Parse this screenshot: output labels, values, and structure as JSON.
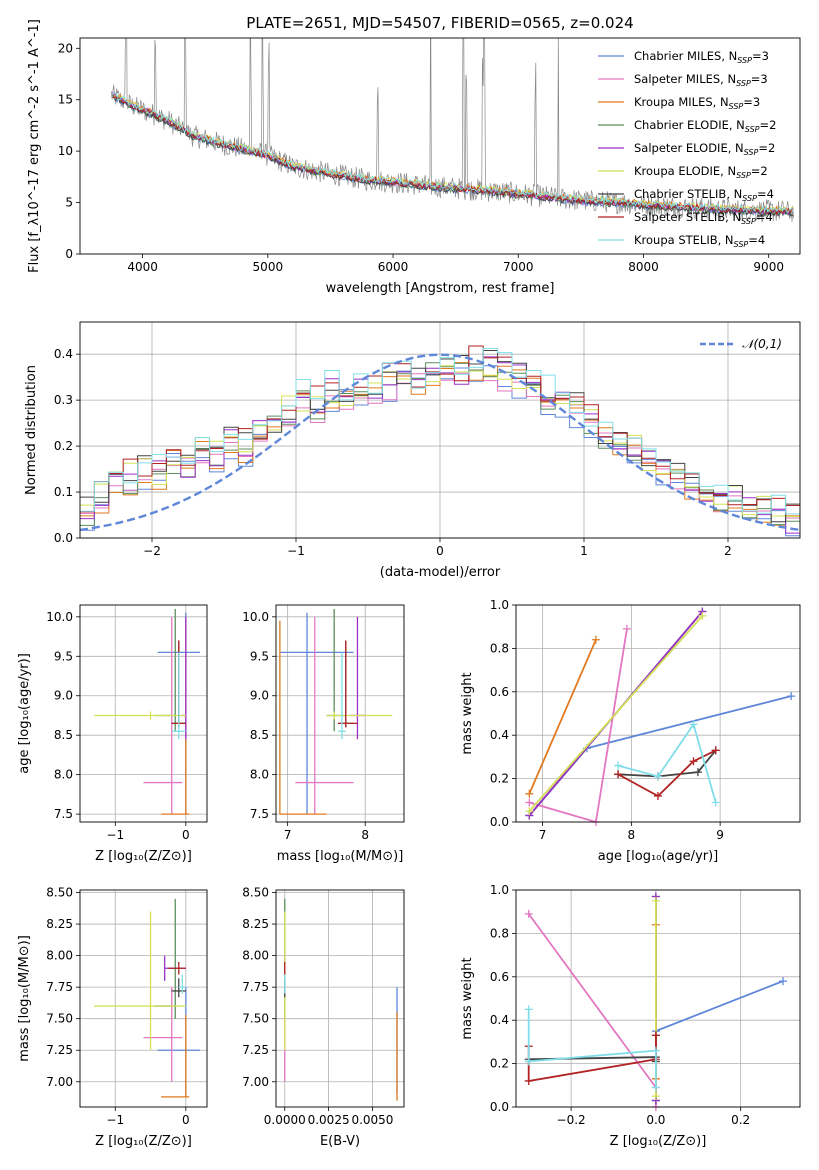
{
  "title": "PLATE=2651, MJD=54507, FIBERID=0565, z=0.024",
  "colors": {
    "Chabrier MILES": "#5f87d9",
    "Salpeter MILES": "#e377c2",
    "Kroupa MILES": "#e07a1f",
    "Chabrier ELODIE": "#5b8f5b",
    "Salpeter ELODIE": "#9b30c8",
    "Kroupa ELODIE": "#d4e157",
    "Chabrier STELIB": "#444444",
    "Salpeter STELIB": "#b22222",
    "Kroupa STELIB": "#80deea"
  },
  "chart_data": [
    {
      "id": "spectrum",
      "type": "line",
      "xlabel": "wavelength [Angstrom, rest frame]",
      "ylabel": "Flux [f_λ10^-17 erg cm^-2 s^-1 A^-1]",
      "xlim": [
        3500,
        9250
      ],
      "ylim": [
        0,
        21
      ],
      "xticks": [
        4000,
        5000,
        6000,
        7000,
        8000,
        9000
      ],
      "yticks": [
        0,
        5,
        10,
        15,
        20
      ],
      "grid": false,
      "legend_position": "upper right",
      "legend": [
        "Chabrier MILES, N_SSP=3",
        "Salpeter MILES, N_SSP=3",
        "Kroupa MILES, N_SSP=3",
        "Chabrier ELODIE, N_SSP=2",
        "Salpeter ELODIE, N_SSP=2",
        "Kroupa ELODIE, N_SSP=2",
        "Chabrier STELIB, N_SSP=4",
        "Salpeter STELIB, N_SSP=4",
        "Kroupa STELIB, N_SSP=4"
      ],
      "continuum": {
        "x": [
          3750,
          3900,
          4000,
          4200,
          4400,
          4600,
          4800,
          5000,
          5200,
          5500,
          5800,
          6000,
          6300,
          6600,
          6900,
          7200,
          7500,
          7800,
          8100,
          8400,
          8700,
          9000,
          9200
        ],
        "y": [
          15.5,
          14.5,
          14.0,
          13.0,
          11.5,
          10.8,
          10.2,
          9.6,
          8.5,
          7.8,
          7.2,
          7.0,
          6.6,
          6.3,
          6.0,
          5.6,
          5.2,
          5.0,
          4.7,
          4.5,
          4.3,
          4.2,
          4.1
        ]
      },
      "emission_lines": [
        3727,
        3869,
        4101,
        4340,
        4861,
        4959,
        5007,
        5876,
        6300,
        6563,
        6583,
        6717,
        6731,
        7136,
        7320
      ]
    },
    {
      "id": "residuals",
      "type": "step",
      "xlabel": "(data-model)/error",
      "ylabel": "Normed distribution",
      "xlim": [
        -2.5,
        2.5
      ],
      "ylim": [
        0,
        0.47
      ],
      "xticks": [
        -2,
        -1,
        0,
        1,
        2
      ],
      "yticks": [
        0.0,
        0.1,
        0.2,
        0.3,
        0.4
      ],
      "grid": true,
      "legend": [
        "N(0,1)"
      ],
      "legend_position": "upper right",
      "normal": {
        "mean": 0,
        "sigma": 1,
        "style": "dashed",
        "color": "#5f87d9"
      },
      "bins": {
        "start": -2.5,
        "width": 0.1
      },
      "histogram_profile": [
        0.06,
        0.09,
        0.12,
        0.13,
        0.15,
        0.14,
        0.17,
        0.16,
        0.19,
        0.18,
        0.21,
        0.2,
        0.23,
        0.25,
        0.28,
        0.3,
        0.29,
        0.32,
        0.31,
        0.33,
        0.32,
        0.34,
        0.35,
        0.34,
        0.36,
        0.37,
        0.36,
        0.38,
        0.37,
        0.36,
        0.35,
        0.33,
        0.31,
        0.3,
        0.28,
        0.25,
        0.22,
        0.2,
        0.19,
        0.17,
        0.15,
        0.14,
        0.12,
        0.1,
        0.09,
        0.08,
        0.07,
        0.06,
        0.05,
        0.04
      ]
    },
    {
      "id": "age_vs_Z",
      "type": "errorbar",
      "xlabel": "Z [log10(Z/Z⊙)]",
      "ylabel": "age [log10(age/yr)]",
      "xlim": [
        -1.5,
        0.3
      ],
      "ylim": [
        7.4,
        10.15
      ],
      "xticks": [
        -1,
        0
      ],
      "yticks": [
        7.5,
        8.0,
        8.5,
        9.0,
        9.5,
        10.0
      ],
      "grid": true,
      "points": [
        {
          "model": "Chabrier MILES",
          "x": 0.0,
          "xerr": [
            0.4,
            0.2
          ],
          "y": 9.55,
          "yerr": [
            2.05,
            0.5
          ]
        },
        {
          "model": "Salpeter MILES",
          "x": -0.2,
          "xerr": [
            0.4,
            0.15
          ],
          "y": 7.9,
          "yerr": [
            0.4,
            2.1
          ]
        },
        {
          "model": "Kroupa MILES",
          "x": 0.0,
          "xerr": [
            0.35,
            0.05
          ],
          "y": 7.5,
          "yerr": [
            0.0,
            2.45
          ]
        },
        {
          "model": "Chabrier ELODIE",
          "x": -0.15,
          "xerr": [
            0.3,
            0.0
          ],
          "y": 8.75,
          "yerr": [
            0.2,
            1.35
          ]
        },
        {
          "model": "Salpeter ELODIE",
          "x": 0.0,
          "xerr": [
            0.05,
            0.0
          ],
          "y": 8.75,
          "yerr": [
            0.3,
            1.25
          ]
        },
        {
          "model": "Kroupa ELODIE",
          "x": -0.5,
          "xerr": [
            0.8,
            0.5
          ],
          "y": 8.75,
          "yerr": [
            0.05,
            0.05
          ]
        },
        {
          "model": "Chabrier STELIB",
          "x": -0.1,
          "xerr": [
            0.1,
            0.1
          ],
          "y": 8.65,
          "yerr": [
            0.05,
            1.05
          ]
        },
        {
          "model": "Salpeter STELIB",
          "x": -0.1,
          "xerr": [
            0.1,
            0.1
          ],
          "y": 8.65,
          "yerr": [
            0.05,
            1.05
          ]
        },
        {
          "model": "Kroupa STELIB",
          "x": -0.1,
          "xerr": [
            0.1,
            0.1
          ],
          "y": 8.55,
          "yerr": [
            0.1,
            1.0
          ]
        }
      ]
    },
    {
      "id": "age_vs_mass",
      "type": "errorbar",
      "xlabel": "mass [log10(M/M⊙)]",
      "ylabel": "",
      "xlim": [
        6.85,
        8.5
      ],
      "ylim": [
        7.4,
        10.15
      ],
      "xticks": [
        7,
        8
      ],
      "yticks": [
        7.5,
        8.0,
        8.5,
        9.0,
        9.5,
        10.0
      ],
      "grid": true,
      "points": [
        {
          "model": "Chabrier MILES",
          "x": 7.25,
          "xerr": [
            0.35,
            0.6
          ],
          "y": 9.55,
          "yerr": [
            2.05,
            0.5
          ]
        },
        {
          "model": "Salpeter MILES",
          "x": 7.35,
          "xerr": [
            0.25,
            0.5
          ],
          "y": 7.9,
          "yerr": [
            0.4,
            2.1
          ]
        },
        {
          "model": "Kroupa MILES",
          "x": 6.9,
          "xerr": [
            0.0,
            0.6
          ],
          "y": 7.5,
          "yerr": [
            0.0,
            2.45
          ]
        },
        {
          "model": "Chabrier ELODIE",
          "x": 7.6,
          "xerr": [
            0.1,
            0.15
          ],
          "y": 8.75,
          "yerr": [
            0.2,
            1.35
          ]
        },
        {
          "model": "Salpeter ELODIE",
          "x": 7.9,
          "xerr": [
            0.1,
            0.1
          ],
          "y": 8.75,
          "yerr": [
            0.3,
            1.25
          ]
        },
        {
          "model": "Kroupa ELODIE",
          "x": 7.6,
          "xerr": [
            0.1,
            0.75
          ],
          "y": 8.75,
          "yerr": [
            0.05,
            0.05
          ]
        },
        {
          "model": "Chabrier STELIB",
          "x": 7.75,
          "xerr": [
            0.1,
            0.1
          ],
          "y": 8.65,
          "yerr": [
            0.05,
            1.05
          ]
        },
        {
          "model": "Salpeter STELIB",
          "x": 7.75,
          "xerr": [
            0.1,
            0.15
          ],
          "y": 8.65,
          "yerr": [
            0.05,
            1.05
          ]
        },
        {
          "model": "Kroupa STELIB",
          "x": 7.7,
          "xerr": [
            0.05,
            0.05
          ],
          "y": 8.55,
          "yerr": [
            0.1,
            1.0
          ]
        }
      ]
    },
    {
      "id": "weight_vs_age",
      "type": "line",
      "xlabel": "age [log10(age/yr)]",
      "ylabel": "mass weight",
      "xlim": [
        6.7,
        9.9
      ],
      "ylim": [
        0,
        1
      ],
      "xticks": [
        7,
        8,
        9
      ],
      "yticks": [
        0.0,
        0.2,
        0.4,
        0.6,
        0.8,
        1.0
      ],
      "grid": true,
      "series": [
        {
          "model": "Chabrier MILES",
          "x": [
            6.85,
            7.5,
            9.8
          ],
          "y": [
            0.03,
            0.34,
            0.58
          ]
        },
        {
          "model": "Salpeter MILES",
          "x": [
            6.85,
            7.6,
            7.95
          ],
          "y": [
            0.09,
            0.0,
            0.89
          ]
        },
        {
          "model": "Kroupa MILES",
          "x": [
            6.85,
            7.6
          ],
          "y": [
            0.13,
            0.84
          ]
        },
        {
          "model": "Chabrier ELODIE",
          "x": [
            6.85,
            8.8
          ],
          "y": [
            0.03,
            0.97
          ]
        },
        {
          "model": "Salpeter ELODIE",
          "x": [
            6.85,
            8.8
          ],
          "y": [
            0.03,
            0.97
          ]
        },
        {
          "model": "Kroupa ELODIE",
          "x": [
            6.85,
            8.8
          ],
          "y": [
            0.05,
            0.95
          ]
        },
        {
          "model": "Chabrier STELIB",
          "x": [
            7.85,
            8.3,
            8.75,
            8.95
          ],
          "y": [
            0.22,
            0.21,
            0.23,
            0.33
          ]
        },
        {
          "model": "Salpeter STELIB",
          "x": [
            7.85,
            8.3,
            8.7,
            8.95
          ],
          "y": [
            0.22,
            0.12,
            0.28,
            0.33
          ]
        },
        {
          "model": "Kroupa STELIB",
          "x": [
            7.85,
            8.3,
            8.7,
            8.95
          ],
          "y": [
            0.26,
            0.21,
            0.45,
            0.09
          ]
        }
      ]
    },
    {
      "id": "mass_vs_Z",
      "type": "errorbar",
      "xlabel": "Z [log10(Z/Z⊙)]",
      "ylabel": "mass [log10(M/M⊙)]",
      "xlim": [
        -1.5,
        0.3
      ],
      "ylim": [
        6.8,
        8.52
      ],
      "xticks": [
        -1,
        0
      ],
      "yticks": [
        7.0,
        7.25,
        7.5,
        7.75,
        8.0,
        8.25,
        8.5
      ],
      "grid": true,
      "points": [
        {
          "model": "Chabrier MILES",
          "x": 0.0,
          "xerr": [
            0.4,
            0.2
          ],
          "y": 7.25,
          "yerr": [
            0.35,
            0.5
          ]
        },
        {
          "model": "Salpeter MILES",
          "x": -0.2,
          "xerr": [
            0.4,
            0.15
          ],
          "y": 7.35,
          "yerr": [
            0.35,
            0.4
          ]
        },
        {
          "model": "Kroupa MILES",
          "x": 0.0,
          "xerr": [
            0.35,
            0.05
          ],
          "y": 6.88,
          "yerr": [
            0.0,
            0.65
          ]
        },
        {
          "model": "Chabrier ELODIE",
          "x": -0.15,
          "xerr": [
            0.3,
            0.0
          ],
          "y": 7.6,
          "yerr": [
            0.1,
            0.85
          ]
        },
        {
          "model": "Salpeter ELODIE",
          "x": -0.3,
          "xerr": [
            0.0,
            0.3
          ],
          "y": 7.9,
          "yerr": [
            0.1,
            0.1
          ]
        },
        {
          "model": "Kroupa ELODIE",
          "x": -0.5,
          "xerr": [
            0.8,
            0.5
          ],
          "y": 7.6,
          "yerr": [
            0.35,
            0.75
          ]
        },
        {
          "model": "Chabrier STELIB",
          "x": -0.1,
          "xerr": [
            0.1,
            0.1
          ],
          "y": 7.72,
          "yerr": [
            0.05,
            0.1
          ]
        },
        {
          "model": "Salpeter STELIB",
          "x": -0.1,
          "xerr": [
            0.15,
            0.1
          ],
          "y": 7.9,
          "yerr": [
            0.05,
            0.05
          ]
        },
        {
          "model": "Kroupa STELIB",
          "x": -0.05,
          "xerr": [
            0.05,
            0.05
          ],
          "y": 7.75,
          "yerr": [
            0.05,
            0.1
          ]
        }
      ]
    },
    {
      "id": "mass_vs_ebv",
      "type": "errorbar",
      "xlabel": "E(B-V)",
      "ylabel": "",
      "xlim": [
        -0.0005,
        0.0068
      ],
      "ylim": [
        6.8,
        8.52
      ],
      "xticks": [
        0.0,
        0.0025,
        0.005
      ],
      "xticklabels": [
        "0.0000",
        "0.0025",
        "0.0050"
      ],
      "yticks": [
        7.0,
        7.25,
        7.5,
        7.75,
        8.0,
        8.25,
        8.5
      ],
      "grid": true,
      "points": [
        {
          "model": "Chabrier MILES",
          "x": 0.0064,
          "xerr": [
            0.0,
            0.0
          ],
          "y": 7.25,
          "yerr": [
            0.35,
            0.5
          ]
        },
        {
          "model": "Salpeter MILES",
          "x": 0.0,
          "xerr": [
            0.0,
            0.0
          ],
          "y": 7.35,
          "yerr": [
            0.35,
            0.4
          ]
        },
        {
          "model": "Kroupa MILES",
          "x": 0.0064,
          "xerr": [
            0.0,
            0.0
          ],
          "y": 7.2,
          "yerr": [
            0.35,
            0.35
          ]
        },
        {
          "model": "Chabrier ELODIE",
          "x": 0.0,
          "xerr": [
            0.0,
            0.0
          ],
          "y": 7.6,
          "yerr": [
            0.1,
            0.85
          ]
        },
        {
          "model": "Salpeter ELODIE",
          "x": 0.0,
          "xerr": [
            0.0,
            0.0
          ],
          "y": 7.9,
          "yerr": [
            0.1,
            0.1
          ]
        },
        {
          "model": "Kroupa ELODIE",
          "x": 0.0,
          "xerr": [
            0.0,
            0.0
          ],
          "y": 7.6,
          "yerr": [
            0.35,
            0.75
          ]
        },
        {
          "model": "Chabrier STELIB",
          "x": 0.0,
          "xerr": [
            0.0,
            0.0
          ],
          "y": 7.72,
          "yerr": [
            0.05,
            0.1
          ]
        },
        {
          "model": "Salpeter STELIB",
          "x": 0.0,
          "xerr": [
            0.0,
            0.0
          ],
          "y": 7.9,
          "yerr": [
            0.05,
            0.05
          ]
        },
        {
          "model": "Kroupa STELIB",
          "x": 0.0,
          "xerr": [
            0.0,
            0.0
          ],
          "y": 7.75,
          "yerr": [
            0.05,
            0.1
          ]
        }
      ]
    },
    {
      "id": "weight_vs_Z",
      "type": "line",
      "xlabel": "Z [log10(Z/Z⊙)]",
      "ylabel": "mass weight",
      "xlim": [
        -0.33,
        0.34
      ],
      "ylim": [
        0,
        1
      ],
      "xticks": [
        -0.2,
        0.0,
        0.2
      ],
      "yticks": [
        0.0,
        0.2,
        0.4,
        0.6,
        0.8,
        1.0
      ],
      "grid": true,
      "series": [
        {
          "model": "Chabrier MILES",
          "x": [
            0.0,
            0.0,
            0.3
          ],
          "y": [
            0.03,
            0.35,
            0.58
          ]
        },
        {
          "model": "Salpeter MILES",
          "x": [
            -0.3,
            0.0,
            0.0
          ],
          "y": [
            0.89,
            0.09,
            0.0
          ]
        },
        {
          "model": "Kroupa MILES",
          "x": [
            0.0,
            0.0
          ],
          "y": [
            0.13,
            0.84
          ]
        },
        {
          "model": "Chabrier ELODIE",
          "x": [
            0.0,
            0.0
          ],
          "y": [
            0.03,
            0.97
          ]
        },
        {
          "model": "Salpeter ELODIE",
          "x": [
            0.0,
            0.0
          ],
          "y": [
            0.03,
            0.97
          ]
        },
        {
          "model": "Kroupa ELODIE",
          "x": [
            0.0,
            0.0
          ],
          "y": [
            0.05,
            0.95
          ]
        },
        {
          "model": "Chabrier STELIB",
          "x": [
            -0.3,
            0.0,
            0.0,
            0.0
          ],
          "y": [
            0.22,
            0.23,
            0.21,
            0.33
          ]
        },
        {
          "model": "Salpeter STELIB",
          "x": [
            -0.3,
            -0.3,
            0.0,
            0.0
          ],
          "y": [
            0.28,
            0.12,
            0.22,
            0.33
          ]
        },
        {
          "model": "Kroupa STELIB",
          "x": [
            -0.3,
            -0.3,
            0.0,
            0.0
          ],
          "y": [
            0.45,
            0.21,
            0.26,
            0.09
          ]
        }
      ]
    }
  ]
}
